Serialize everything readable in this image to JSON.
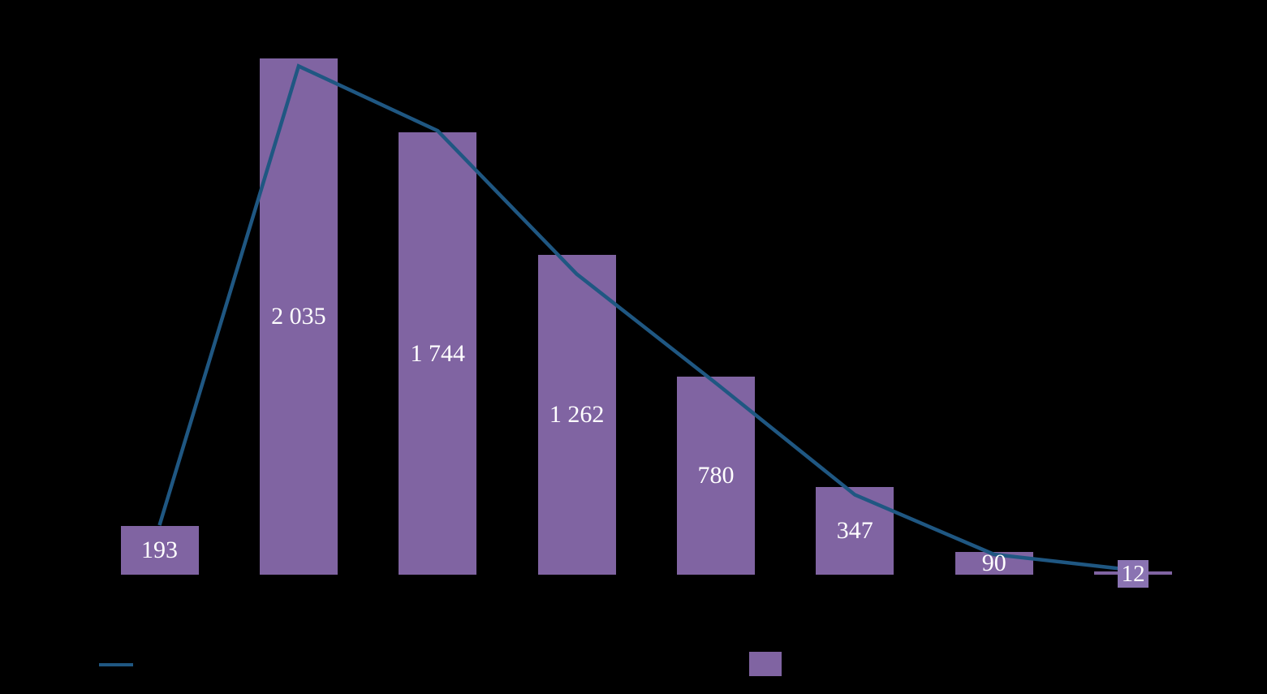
{
  "background_color": "#000000",
  "chart_data": {
    "type": "bar",
    "subtype": "combo-bar-and-line",
    "categories": [
      "",
      "",
      "",
      "",
      "",
      "",
      "",
      ""
    ],
    "bars": {
      "values": [
        193,
        2035,
        1744,
        1262,
        780,
        347,
        90,
        12
      ],
      "labels": [
        "193",
        "2 035",
        "1 744",
        "1 262",
        "780",
        "347",
        "90",
        "12"
      ],
      "color": "#8064A2",
      "data_label_color": "#FFFFFF",
      "last_label_box_color": "#8A73B2"
    },
    "line": {
      "values_estimated": [
        195,
        2005,
        1750,
        1185,
        755,
        315,
        80,
        18
      ],
      "color": "#1F5782",
      "stroke_width": 4.5
    },
    "ylim": [
      0,
      2220
    ],
    "grid": false,
    "axes_visible": false,
    "legend_position": "bottom"
  },
  "legend": {
    "line_swatch_color": "#1F5782",
    "bar_swatch_color": "#8064A2"
  }
}
